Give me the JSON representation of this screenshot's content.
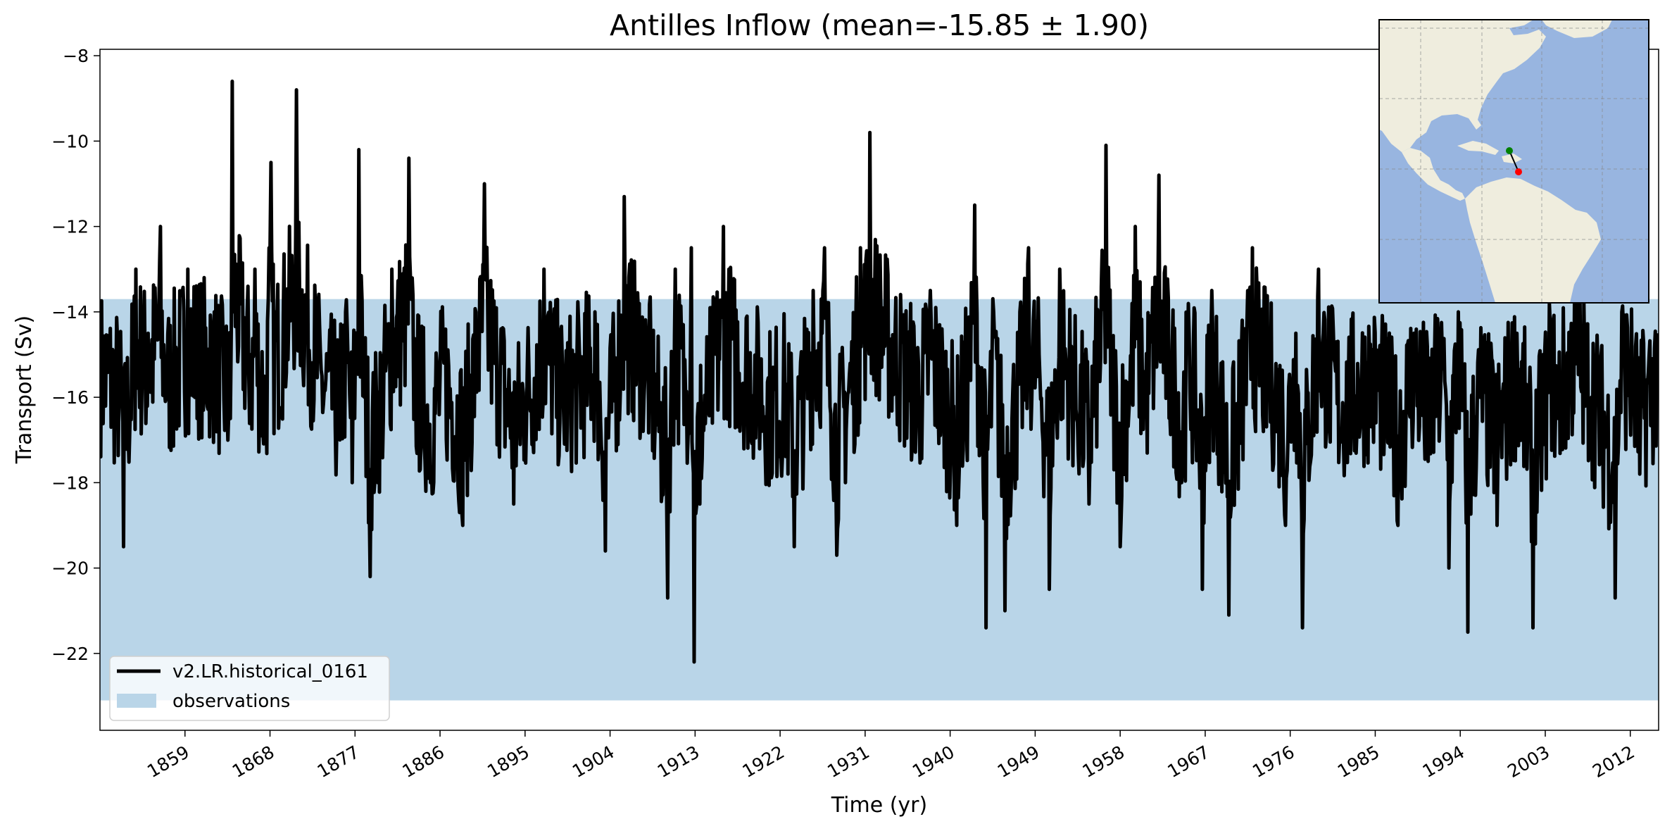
{
  "chart_data": {
    "type": "line",
    "title": "Antilles Inflow (mean=-15.85 ± 1.90)",
    "xlabel": "Time (yr)",
    "ylabel": "Transport (Sv)",
    "xlim": [
      1850,
      2015
    ],
    "ylim": [
      -23.8,
      -7.85
    ],
    "x_ticks": [
      1859,
      1868,
      1877,
      1886,
      1895,
      1904,
      1913,
      1922,
      1931,
      1940,
      1949,
      1958,
      1967,
      1976,
      1985,
      1994,
      2003,
      2012
    ],
    "y_ticks": [
      -22,
      -20,
      -18,
      -16,
      -14,
      -12,
      -10,
      -8
    ],
    "grid": false,
    "legend_location": "lower left",
    "series": [
      {
        "name": "v2.LR.historical_0161",
        "color": "#000000",
        "kind": "line",
        "sampling": "monthly, 1850–2014 (key extremes read from plot; remainder approximated)",
        "mean": -15.85,
        "std": 1.9,
        "x": [
          1850.0,
          1852.1,
          1852.5,
          1853.8,
          1855.1,
          1856.4,
          1857.1,
          1859.3,
          1862.1,
          1863.8,
          1864.0,
          1866.0,
          1866.4,
          1867.5,
          1867.9,
          1868.1,
          1868.5,
          1870.8,
          1873.5,
          1875.4,
          1876.0,
          1876.7,
          1877.4,
          1878.0,
          1878.6,
          1880.9,
          1882.7,
          1883.4,
          1885.0,
          1886.5,
          1888.4,
          1890.7,
          1893.8,
          1897.0,
          1899.1,
          1902.4,
          1903.5,
          1905.5,
          1908.0,
          1910.1,
          1910.9,
          1912.0,
          1912.6,
          1912.9,
          1913.5,
          1916.0,
          1919.5,
          1921.0,
          1922.5,
          1923.5,
          1925.5,
          1926.7,
          1927.2,
          1928.0,
          1930.5,
          1931.5,
          1935.0,
          1936.9,
          1937.9,
          1940.7,
          1941.9,
          1942.6,
          1943.5,
          1943.8,
          1944.6,
          1945.8,
          1948.3,
          1949.5,
          1950.5,
          1951.6,
          1953.4,
          1954.7,
          1956.5,
          1957.1,
          1958.0,
          1959.6,
          1960.7,
          1962.1,
          1964.5,
          1965.3,
          1966.0,
          1966.7,
          1967.7,
          1969.5,
          1972.0,
          1974.4,
          1975.5,
          1976.6,
          1977.3,
          1979.0,
          1981.3,
          1984.4,
          1986.0,
          1987.4,
          1989.1,
          1990.6,
          1992.1,
          1992.8,
          1993.8,
          1994.8,
          1996.1,
          1997.9,
          2000.0,
          2000.9,
          2001.7,
          2003.6,
          2004.4,
          2006.1,
          2007.9,
          2010.4,
          2011.1,
          2012.3,
          2013.0,
          2014.9
        ],
        "y": [
          -14.5,
          -16.0,
          -19.5,
          -13.0,
          -14.5,
          -12.0,
          -15.5,
          -13.0,
          -14.0,
          -16.5,
          -8.6,
          -15.0,
          -13.0,
          -17.0,
          -12.5,
          -10.5,
          -14.0,
          -8.8,
          -15.5,
          -17.0,
          -14.0,
          -18.0,
          -10.2,
          -16.0,
          -20.2,
          -13.0,
          -10.4,
          -15.5,
          -18.0,
          -15.0,
          -19.0,
          -11.0,
          -18.5,
          -13.0,
          -16.5,
          -14.0,
          -19.6,
          -11.3,
          -14.5,
          -20.7,
          -13.0,
          -16.0,
          -12.5,
          -22.2,
          -18.5,
          -12.0,
          -15.5,
          -17.0,
          -16.0,
          -19.5,
          -13.5,
          -12.5,
          -15.0,
          -19.7,
          -12.5,
          -9.8,
          -14.5,
          -16.0,
          -13.5,
          -19.0,
          -15.0,
          -11.5,
          -18.0,
          -21.4,
          -14.0,
          -21.0,
          -12.5,
          -15.5,
          -20.5,
          -13.0,
          -16.5,
          -18.5,
          -10.1,
          -15.0,
          -19.5,
          -12.0,
          -16.0,
          -10.8,
          -18.0,
          -14.5,
          -16.5,
          -20.5,
          -13.5,
          -21.1,
          -12.5,
          -16.0,
          -19.0,
          -14.5,
          -21.4,
          -13.0,
          -17.0,
          -15.0,
          -16.5,
          -19.0,
          -14.5,
          -17.5,
          -15.0,
          -20.0,
          -14.0,
          -21.5,
          -16.0,
          -19.0,
          -14.5,
          -17.5,
          -21.4,
          -14.5,
          -16.5,
          -13.5,
          -16.0,
          -20.7,
          -14.0,
          -15.5,
          -17.8,
          -14.5
        ]
      },
      {
        "name": "observations",
        "kind": "band",
        "color": "#b9d5e8",
        "y_range": [
          -23.1,
          -13.7
        ]
      }
    ],
    "inset_map": {
      "region": "Western North Atlantic / Caribbean",
      "land_color": "#efedde",
      "ocean_color": "#98b5e0",
      "section_start_color": "#008000",
      "section_end_color": "#ff0000",
      "grid": "dashed"
    }
  }
}
